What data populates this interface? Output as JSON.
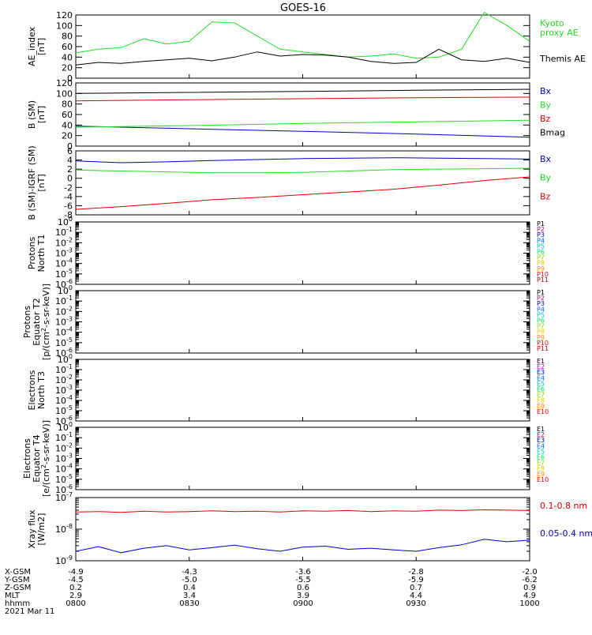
{
  "title": "GOES-16",
  "colors": {
    "black": "#000000",
    "red": "#dd0000",
    "green": "#22dd22",
    "blue": "#0000cc",
    "channels": [
      "#000000",
      "#cc0066",
      "#000099",
      "#0066ff",
      "#00bbbb",
      "#00dd66",
      "#88dd00",
      "#ddcc00",
      "#ff8800",
      "#ff0000",
      "#cc0000"
    ]
  },
  "footer": {
    "rows": [
      {
        "label": "X-GSM",
        "values": [
          "-4.9",
          "-4.3",
          "-3.6",
          "-2.8",
          "-2.0"
        ]
      },
      {
        "label": "Y-GSM",
        "values": [
          "-4.5",
          "-5.0",
          "-5.5",
          "-5.9",
          "-6.2"
        ]
      },
      {
        "label": "Z-GSM",
        "values": [
          "0.2",
          "0.4",
          "0.6",
          "0.7",
          "0.9"
        ]
      },
      {
        "label": "MLT",
        "values": [
          "2.9",
          "3.4",
          "3.9",
          "4.4",
          "4.9"
        ]
      },
      {
        "label": "hhmm",
        "values": [
          "0800",
          "0830",
          "0900",
          "0930",
          "1000"
        ]
      }
    ],
    "date": "2021 Mar 11"
  },
  "chart_data": [
    {
      "type": "line",
      "ylabel": [
        "AE_index",
        "[nT]"
      ],
      "ylim": [
        0,
        120
      ],
      "yticks": [
        "0",
        "20",
        "40",
        "60",
        "80",
        "100",
        "120"
      ],
      "x": [
        0,
        0.05,
        0.1,
        0.15,
        0.2,
        0.25,
        0.3,
        0.35,
        0.4,
        0.45,
        0.5,
        0.55,
        0.6,
        0.65,
        0.7,
        0.75,
        0.8,
        0.85,
        0.9,
        0.95,
        1
      ],
      "series": [
        {
          "name": "Kyoto\nproxy AE",
          "color": "#22dd22",
          "values": [
            48,
            55,
            58,
            75,
            65,
            70,
            107,
            105,
            80,
            55,
            50,
            45,
            40,
            42,
            46,
            38,
            40,
            55,
            125,
            100,
            70
          ]
        },
        {
          "name": "Themis AE",
          "color": "#000000",
          "values": [
            25,
            30,
            28,
            32,
            35,
            38,
            33,
            40,
            50,
            42,
            45,
            44,
            40,
            32,
            28,
            30,
            55,
            35,
            32,
            38,
            30
          ]
        }
      ]
    },
    {
      "type": "line",
      "ylabel": [
        "B (SM)",
        "[nT]"
      ],
      "ylim": [
        0,
        120
      ],
      "yticks": [
        "0",
        "20",
        "40",
        "60",
        "80",
        "100",
        "120"
      ],
      "x": [
        0,
        0.25,
        0.5,
        0.75,
        1
      ],
      "series": [
        {
          "name": "Bx",
          "color": "#0000cc",
          "values": [
            38,
            33,
            28,
            23,
            17
          ]
        },
        {
          "name": "By",
          "color": "#22dd22",
          "values": [
            36,
            39,
            43,
            46,
            49
          ]
        },
        {
          "name": "Bz",
          "color": "#dd0000",
          "values": [
            86,
            88,
            90,
            92,
            93
          ]
        },
        {
          "name": "Bmag",
          "color": "#000000",
          "values": [
            100,
            102,
            104,
            106,
            108
          ]
        }
      ]
    },
    {
      "type": "line",
      "ylabel": [
        "B (SM)-IGRF (SM)",
        "[nT]"
      ],
      "ylim": [
        -8,
        6
      ],
      "yticks": [
        "-8",
        "-6",
        "-4",
        "-2",
        "0",
        "2",
        "4",
        "6"
      ],
      "x": [
        0,
        0.1,
        0.2,
        0.3,
        0.4,
        0.5,
        0.6,
        0.7,
        0.8,
        0.9,
        1
      ],
      "series": [
        {
          "name": "Bx",
          "color": "#0000cc",
          "values": [
            3.8,
            3.4,
            3.6,
            3.9,
            4.1,
            4.3,
            4.4,
            4.5,
            4.4,
            4.3,
            4.2
          ]
        },
        {
          "name": "By",
          "color": "#22dd22",
          "values": [
            1.8,
            1.6,
            1.4,
            1.2,
            1.2,
            1.3,
            1.6,
            1.9,
            2.0,
            2.1,
            2.2
          ]
        },
        {
          "name": "Bz",
          "color": "#dd0000",
          "values": [
            -6.8,
            -6.2,
            -5.5,
            -4.7,
            -4.2,
            -3.6,
            -3.0,
            -2.4,
            -1.5,
            -0.5,
            0.3
          ]
        }
      ]
    },
    {
      "type": "line",
      "ylabel": [
        "Protons",
        "North T1"
      ],
      "ylim_log": [
        -6,
        0
      ],
      "yticks": [
        "10^0",
        "10^-1",
        "10^-2",
        "10^-3",
        "10^-4",
        "10^-5",
        "10^-6"
      ],
      "legend": [
        "P1",
        "P2",
        "P3",
        "P4",
        "P5",
        "P6",
        "P7",
        "P8",
        "P9",
        "P10",
        "P11"
      ],
      "series": []
    },
    {
      "type": "line",
      "ylabel": [
        "Protons",
        "Equator T2",
        "[p/(cm^2-s-sr-keV)]"
      ],
      "ylim_log": [
        -6,
        0
      ],
      "yticks": [
        "10^0",
        "10^-1",
        "10^-2",
        "10^-3",
        "10^-4",
        "10^-5",
        "10^-6"
      ],
      "legend": [
        "P1",
        "P2",
        "P3",
        "P4",
        "P5",
        "P6",
        "P7",
        "P8",
        "P9",
        "P10",
        "P11"
      ],
      "series": []
    },
    {
      "type": "line",
      "ylabel": [
        "Electrons",
        "North T3"
      ],
      "ylim_log": [
        -6,
        0
      ],
      "yticks": [
        "10^0",
        "10^-1",
        "10^-2",
        "10^-3",
        "10^-4",
        "10^-5",
        "10^-6"
      ],
      "legend": [
        "E1",
        "E2",
        "E3",
        "E4",
        "E5",
        "E6",
        "E7",
        "E8",
        "E9",
        "E10"
      ],
      "series": []
    },
    {
      "type": "line",
      "ylabel": [
        "Electrons",
        "Equator T4",
        "[e/(cm^2-s-sr-keV)]"
      ],
      "ylim_log": [
        -6,
        0
      ],
      "yticks": [
        "10^0",
        "10^-1",
        "10^-2",
        "10^-3",
        "10^-4",
        "10^-5",
        "10^-6"
      ],
      "legend": [
        "E1",
        "E2",
        "E3",
        "E4",
        "E5",
        "E6",
        "E7",
        "E8",
        "E9",
        "E10"
      ],
      "series": []
    },
    {
      "type": "line",
      "ylabel": [
        "Xray flux",
        "[W/m2]"
      ],
      "ylim_log": [
        -9,
        -7
      ],
      "yticks": [
        "10^-7",
        "10^-8",
        "10^-9"
      ],
      "x": [
        0,
        0.05,
        0.1,
        0.15,
        0.2,
        0.25,
        0.3,
        0.35,
        0.4,
        0.45,
        0.5,
        0.55,
        0.6,
        0.65,
        0.7,
        0.75,
        0.8,
        0.85,
        0.9,
        0.95,
        1
      ],
      "series": [
        {
          "name": "0.1-0.8 nm",
          "color": "#dd0000",
          "values": [
            3.5e-08,
            3.6e-08,
            3.4e-08,
            3.7e-08,
            3.5e-08,
            3.6e-08,
            3.8e-08,
            3.6e-08,
            3.7e-08,
            3.5e-08,
            3.8e-08,
            3.7e-08,
            3.9e-08,
            3.6e-08,
            3.8e-08,
            3.7e-08,
            4e-08,
            3.9e-08,
            4.1e-08,
            4e-08,
            3.9e-08
          ]
        },
        {
          "name": "0.05-0.4 nm",
          "color": "#0000cc",
          "values": [
            2e-09,
            2.8e-09,
            1.8e-09,
            2.5e-09,
            3e-09,
            2.2e-09,
            2.6e-09,
            3.1e-09,
            2.4e-09,
            2e-09,
            2.7e-09,
            2.9e-09,
            2.3e-09,
            2.5e-09,
            2.2e-09,
            2e-09,
            2.6e-09,
            3.2e-09,
            4.8e-09,
            4e-09,
            4.5e-09
          ]
        }
      ]
    }
  ]
}
